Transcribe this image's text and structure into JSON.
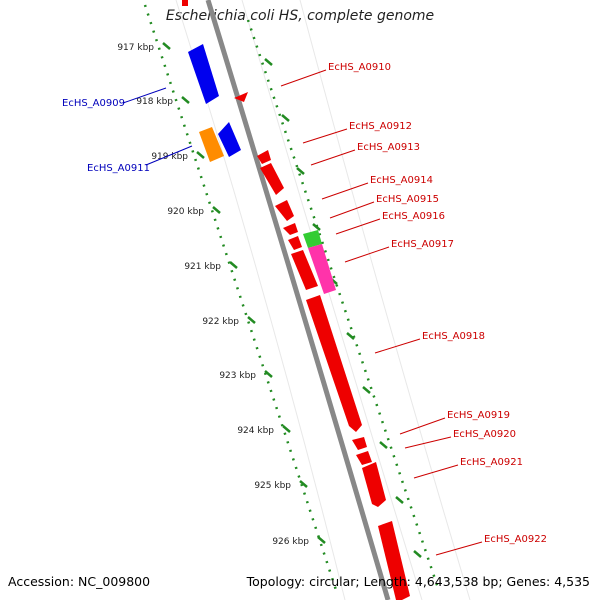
{
  "title": "Escherichia coli HS, complete genome",
  "footer": {
    "accession_label": "Accession:",
    "accession": "NC_009800",
    "topology_text": "Topology: circular; Length: 4,643,538 bp; Genes: 4,535"
  },
  "colors": {
    "forward_gene": "#0000ee",
    "reverse_gene": "#ee0000",
    "forward_label": "#0000bb",
    "reverse_label": "#cc0000",
    "orange_gene": "#ff8c00",
    "green_gene": "#33cc33",
    "pink_gene": "#ff33aa",
    "axis": "#888888",
    "ruler": "#228b22"
  },
  "ruler_ticks": [
    "917 kbp",
    "918 kbp",
    "919 kbp",
    "920 kbp",
    "921 kbp",
    "922 kbp",
    "923 kbp",
    "924 kbp",
    "925 kbp",
    "926 kbp"
  ],
  "forward_genes": [
    "EcHS_A0909",
    "EcHS_A0911"
  ],
  "reverse_genes": [
    "EcHS_A0910",
    "EcHS_A0912",
    "EcHS_A0913",
    "EcHS_A0914",
    "EcHS_A0915",
    "EcHS_A0916",
    "EcHS_A0917",
    "EcHS_A0918",
    "EcHS_A0919",
    "EcHS_A0920",
    "EcHS_A0921",
    "EcHS_A0922"
  ]
}
